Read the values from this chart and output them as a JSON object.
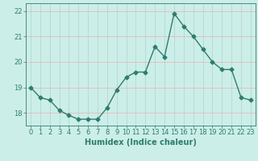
{
  "x": [
    0,
    1,
    2,
    3,
    4,
    5,
    6,
    7,
    8,
    9,
    10,
    11,
    12,
    13,
    14,
    15,
    16,
    17,
    18,
    19,
    20,
    21,
    22,
    23
  ],
  "y": [
    19.0,
    18.6,
    18.5,
    18.1,
    17.9,
    17.75,
    17.75,
    17.75,
    18.2,
    18.9,
    19.4,
    19.6,
    19.6,
    20.6,
    20.2,
    21.9,
    21.4,
    21.0,
    20.5,
    20.0,
    19.7,
    19.7,
    18.6,
    18.5
  ],
  "line_color": "#2e7d6e",
  "marker": "D",
  "marker_size": 2.5,
  "bg_color": "#cceee8",
  "grid_color_x": "#aed4cc",
  "grid_color_y": "#e8b0b0",
  "xlabel": "Humidex (Indice chaleur)",
  "xlabel_fontsize": 7,
  "ylim": [
    17.5,
    22.3
  ],
  "xlim": [
    -0.5,
    23.5
  ],
  "yticks": [
    18,
    19,
    20,
    21,
    22
  ],
  "xticks": [
    0,
    1,
    2,
    3,
    4,
    5,
    6,
    7,
    8,
    9,
    10,
    11,
    12,
    13,
    14,
    15,
    16,
    17,
    18,
    19,
    20,
    21,
    22,
    23
  ],
  "tick_fontsize": 6,
  "line_width": 1.0
}
